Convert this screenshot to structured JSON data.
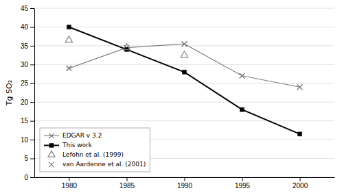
{
  "chart_data": {
    "type": "line",
    "ylabel": "Tg SO₂",
    "xlim": [
      1977,
      2003
    ],
    "xticks": [
      1980,
      1985,
      1990,
      1995,
      2000
    ],
    "ylim": [
      0,
      45
    ],
    "yticks": [
      0,
      5,
      10,
      15,
      20,
      25,
      30,
      35,
      40,
      45
    ],
    "grid": true,
    "legend": "lower left",
    "series": [
      {
        "name": "EDGAR v 3.2",
        "color": "#808080",
        "marker": "x",
        "line_style": "solid",
        "x": [
          1980,
          1985,
          1990,
          1995,
          2000
        ],
        "values": [
          29,
          34.5,
          35.5,
          27,
          24
        ]
      },
      {
        "name": "This work",
        "color": "#000000",
        "marker": "square",
        "line_style": "solid",
        "x": [
          1980,
          1985,
          1990,
          1995,
          2000
        ],
        "values": [
          40,
          34,
          28,
          18,
          11.5
        ]
      },
      {
        "name": "Lefohn et al. (1999)",
        "color": "#808080",
        "marker": "triangle-open",
        "line_style": "none",
        "x": [
          1980,
          1985,
          1990
        ],
        "values": [
          36.5,
          34.5,
          32.5
        ]
      },
      {
        "name": "van Aardenne et al. (2001)",
        "color": "#808080",
        "marker": "x",
        "line_style": "none",
        "x": [
          1980,
          1990,
          1995,
          2000
        ],
        "values": [
          29,
          35.5,
          27,
          24
        ]
      }
    ]
  }
}
